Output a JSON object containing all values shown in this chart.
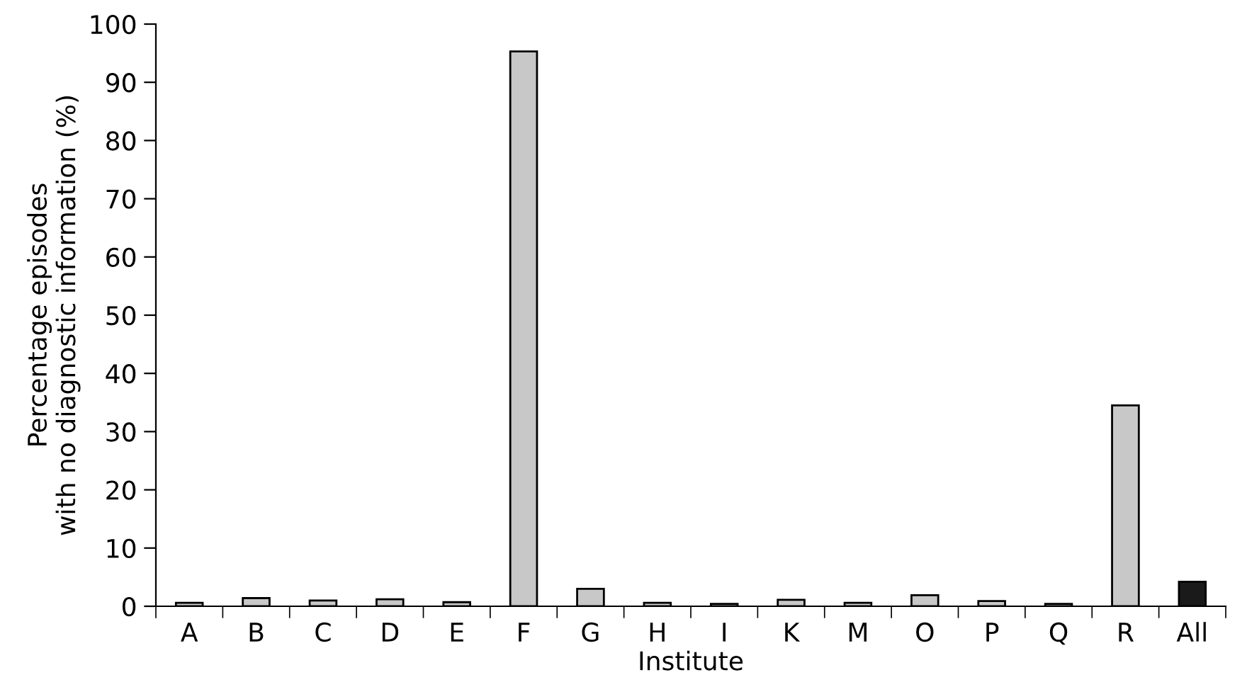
{
  "chart_data": {
    "type": "bar",
    "xlabel": "Institute",
    "ylabel": "Percentage episodes\nwith no diagnostic information (%)",
    "categories": [
      "A",
      "B",
      "C",
      "D",
      "E",
      "F",
      "G",
      "H",
      "I",
      "K",
      "M",
      "O",
      "P",
      "Q",
      "R",
      "All"
    ],
    "values": [
      0.6,
      1.4,
      1.0,
      1.2,
      0.7,
      95.3,
      3.0,
      0.6,
      0.4,
      1.1,
      0.6,
      1.9,
      0.9,
      0.4,
      34.5,
      4.2
    ],
    "colors": [
      "#c8c8c8",
      "#c8c8c8",
      "#c8c8c8",
      "#c8c8c8",
      "#c8c8c8",
      "#c8c8c8",
      "#c8c8c8",
      "#c8c8c8",
      "#c8c8c8",
      "#c8c8c8",
      "#c8c8c8",
      "#c8c8c8",
      "#c8c8c8",
      "#c8c8c8",
      "#c8c8c8",
      "#1a1a1a"
    ],
    "ylim": [
      0,
      100
    ],
    "yticks": [
      0,
      10,
      20,
      30,
      40,
      50,
      60,
      70,
      80,
      90,
      100
    ],
    "grid": false,
    "legend": false
  }
}
